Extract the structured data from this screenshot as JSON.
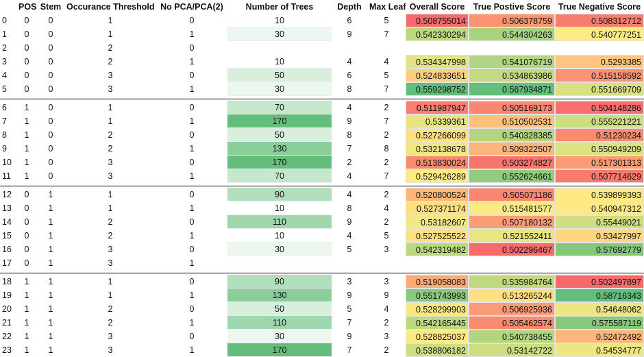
{
  "columns": [
    "",
    "POS",
    "Stem",
    "Occurance Threshold",
    "No PCA/PCA(2)",
    "Number of Trees",
    "Depth",
    "Max Leaf Nodes",
    "Overall Score",
    "True Postive Score",
    "True Negative Score"
  ],
  "rows": [
    {
      "idx": "0",
      "pos": "0",
      "stem": "0",
      "occ": "1",
      "pca": "0",
      "trees": "10",
      "depth": "6",
      "leaf": "5",
      "overall": "0.508755014",
      "tp": "0.506378759",
      "tn": "0.508312712"
    },
    {
      "idx": "1",
      "pos": "0",
      "stem": "0",
      "occ": "1",
      "pca": "1",
      "trees": "30",
      "depth": "9",
      "leaf": "7",
      "overall": "0.542330294",
      "tp": "0.544304263",
      "tn": "0.540777251"
    },
    {
      "idx": "2",
      "pos": "0",
      "stem": "0",
      "occ": "2",
      "pca": "0",
      "trees": "",
      "depth": "",
      "leaf": "",
      "overall": "",
      "tp": "",
      "tn": ""
    },
    {
      "idx": "3",
      "pos": "0",
      "stem": "0",
      "occ": "2",
      "pca": "1",
      "trees": "10",
      "depth": "4",
      "leaf": "4",
      "overall": "0.534347998",
      "tp": "0.541076719",
      "tn": "0.5293385"
    },
    {
      "idx": "4",
      "pos": "0",
      "stem": "0",
      "occ": "3",
      "pca": "0",
      "trees": "50",
      "depth": "6",
      "leaf": "5",
      "overall": "0.524833651",
      "tp": "0.534863986",
      "tn": "0.515158592"
    },
    {
      "idx": "5",
      "pos": "0",
      "stem": "0",
      "occ": "3",
      "pca": "1",
      "trees": "30",
      "depth": "8",
      "leaf": "7",
      "overall": "0.559298752",
      "tp": "0.567934871",
      "tn": "0.551669709"
    },
    {
      "idx": "6",
      "pos": "1",
      "stem": "0",
      "occ": "1",
      "pca": "0",
      "trees": "70",
      "depth": "4",
      "leaf": "2",
      "overall": "0.511987947",
      "tp": "0.505169173",
      "tn": "0.504148286"
    },
    {
      "idx": "7",
      "pos": "1",
      "stem": "0",
      "occ": "1",
      "pca": "1",
      "trees": "170",
      "depth": "9",
      "leaf": "7",
      "overall": "0.5339361",
      "tp": "0.510502531",
      "tn": "0.555221221"
    },
    {
      "idx": "8",
      "pos": "1",
      "stem": "0",
      "occ": "2",
      "pca": "0",
      "trees": "50",
      "depth": "8",
      "leaf": "2",
      "overall": "0.527266099",
      "tp": "0.540328385",
      "tn": "0.51230234"
    },
    {
      "idx": "9",
      "pos": "1",
      "stem": "0",
      "occ": "2",
      "pca": "1",
      "trees": "130",
      "depth": "7",
      "leaf": "8",
      "overall": "0.532138678",
      "tp": "0.509322507",
      "tn": "0.550949209"
    },
    {
      "idx": "10",
      "pos": "1",
      "stem": "0",
      "occ": "3",
      "pca": "0",
      "trees": "170",
      "depth": "2",
      "leaf": "2",
      "overall": "0.513830024",
      "tp": "0.503274827",
      "tn": "0.517301313"
    },
    {
      "idx": "11",
      "pos": "1",
      "stem": "0",
      "occ": "3",
      "pca": "1",
      "trees": "70",
      "depth": "4",
      "leaf": "7",
      "overall": "0.529426289",
      "tp": "0.552624661",
      "tn": "0.507714629"
    },
    {
      "idx": "12",
      "pos": "0",
      "stem": "1",
      "occ": "1",
      "pca": "0",
      "trees": "90",
      "depth": "4",
      "leaf": "2",
      "overall": "0.520800524",
      "tp": "0.505071186",
      "tn": "0.539899393"
    },
    {
      "idx": "13",
      "pos": "0",
      "stem": "1",
      "occ": "1",
      "pca": "1",
      "trees": "10",
      "depth": "8",
      "leaf": "4",
      "overall": "0.527371174",
      "tp": "0.515481577",
      "tn": "0.540947312"
    },
    {
      "idx": "14",
      "pos": "0",
      "stem": "1",
      "occ": "2",
      "pca": "0",
      "trees": "110",
      "depth": "9",
      "leaf": "2",
      "overall": "0.53182607",
      "tp": "0.507180132",
      "tn": "0.55449021"
    },
    {
      "idx": "15",
      "pos": "0",
      "stem": "1",
      "occ": "2",
      "pca": "1",
      "trees": "10",
      "depth": "4",
      "leaf": "5",
      "overall": "0.527525522",
      "tp": "0.521552411",
      "tn": "0.53427997"
    },
    {
      "idx": "16",
      "pos": "0",
      "stem": "1",
      "occ": "3",
      "pca": "0",
      "trees": "30",
      "depth": "5",
      "leaf": "3",
      "overall": "0.542319482",
      "tp": "0.502296467",
      "tn": "0.57692779"
    },
    {
      "idx": "17",
      "pos": "0",
      "stem": "1",
      "occ": "3",
      "pca": "1",
      "trees": "",
      "depth": "",
      "leaf": "",
      "overall": "",
      "tp": "",
      "tn": ""
    },
    {
      "idx": "18",
      "pos": "1",
      "stem": "1",
      "occ": "1",
      "pca": "0",
      "trees": "90",
      "depth": "3",
      "leaf": "3",
      "overall": "0.519058083",
      "tp": "0.535984764",
      "tn": "0.502497897"
    },
    {
      "idx": "19",
      "pos": "1",
      "stem": "1",
      "occ": "1",
      "pca": "1",
      "trees": "130",
      "depth": "9",
      "leaf": "9",
      "overall": "0.551743993",
      "tp": "0.513265244",
      "tn": "0.58716343"
    },
    {
      "idx": "20",
      "pos": "1",
      "stem": "1",
      "occ": "2",
      "pca": "0",
      "trees": "50",
      "depth": "5",
      "leaf": "4",
      "overall": "0.528299903",
      "tp": "0.506925936",
      "tn": "0.54648062"
    },
    {
      "idx": "21",
      "pos": "1",
      "stem": "1",
      "occ": "2",
      "pca": "1",
      "trees": "110",
      "depth": "7",
      "leaf": "2",
      "overall": "0.542165445",
      "tp": "0.505462574",
      "tn": "0.575587119"
    },
    {
      "idx": "22",
      "pos": "1",
      "stem": "1",
      "occ": "3",
      "pca": "0",
      "trees": "30",
      "depth": "9",
      "leaf": "3",
      "overall": "0.528825037",
      "tp": "0.540738455",
      "tn": "0.52472492"
    },
    {
      "idx": "23",
      "pos": "1",
      "stem": "1",
      "occ": "3",
      "pca": "1",
      "trees": "170",
      "depth": "7",
      "leaf": "2",
      "overall": "0.538806182",
      "tp": "0.53142722",
      "tn": "0.54534777"
    }
  ],
  "group_separators_after_rows": [
    5,
    11,
    17
  ],
  "colors": {
    "scale_low": "#f8696b",
    "scale_mid": "#ffeb84",
    "scale_high": "#63be7b",
    "bar_low": "#ffffff",
    "bar_high": "#63be7b",
    "separator": "#000000"
  }
}
